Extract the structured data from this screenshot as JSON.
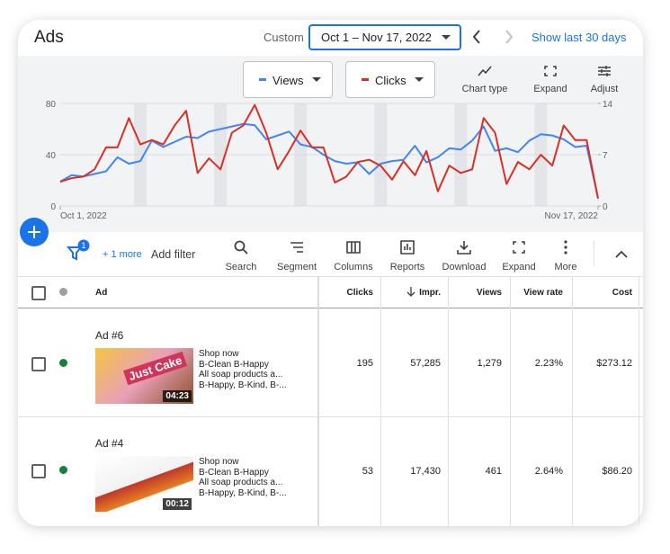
{
  "header": {
    "title": "Ads",
    "date_mode": "Custom",
    "date_range": "Oct 1 – Nov 17, 2022",
    "shortcut": "Show last 30 days"
  },
  "chart_controls": [
    "Chart type",
    "Expand",
    "Adjust"
  ],
  "chart_data": {
    "type": "line",
    "series": [
      {
        "name": "Views",
        "color": "#4285f4",
        "axis": "y",
        "values": [
          19,
          24,
          23,
          25,
          27,
          38,
          33,
          35,
          51,
          46,
          50,
          54,
          53,
          58,
          60,
          62,
          64,
          63,
          52,
          55,
          58,
          48,
          46,
          40,
          35,
          33,
          34,
          25,
          33,
          35,
          36,
          47,
          34,
          38,
          45,
          44,
          51,
          62,
          43,
          45,
          42,
          51,
          56,
          55,
          52,
          46,
          47,
          6
        ]
      },
      {
        "name": "Clicks",
        "color": "#d93025",
        "axis": "y2",
        "values": [
          3.3,
          3.8,
          4,
          5,
          8,
          8,
          12,
          8.4,
          9,
          8.4,
          11,
          13,
          4.5,
          6.5,
          5,
          10,
          11,
          13.8,
          10,
          5,
          7.5,
          10.3,
          8,
          8,
          3.2,
          4,
          6,
          6.3,
          5.5,
          3.6,
          6.1,
          4.2,
          7.5,
          2,
          5.5,
          4.5,
          5,
          12,
          10,
          3,
          6,
          5,
          7,
          5.5,
          11,
          9,
          9,
          1
        ]
      }
    ],
    "ylim": [
      0,
      80
    ],
    "yticks": [
      0,
      40,
      80
    ],
    "y2lim": [
      0,
      14
    ],
    "y2ticks": [
      0,
      7,
      14
    ],
    "xlim": [
      0,
      47
    ],
    "xticks": [
      {
        "value": 0,
        "label": "Oct 1, 2022"
      },
      {
        "value": 47,
        "label": "Nov 17, 2022"
      }
    ],
    "grid": true
  },
  "toolbar": {
    "filter_count": 1,
    "more_filters": "+ 1 more",
    "add_filter": "Add filter",
    "tools": [
      "Search",
      "Segment",
      "Columns",
      "Reports",
      "Download",
      "Expand",
      "More"
    ]
  },
  "table": {
    "columns": [
      "Ad",
      "Clicks",
      "Impr.",
      "Views",
      "View rate",
      "Cost"
    ],
    "rows": [
      {
        "name": "Ad #6",
        "lines": [
          "Shop now",
          "B-Clean B-Happy",
          "All soap products a...",
          "B-Happy, B-Kind, B-..."
        ],
        "thumbnail_text": "Just Cake",
        "duration": "04:23",
        "cells": [
          "195",
          "57,285",
          "1,279",
          "2.23%",
          "$273.12"
        ]
      },
      {
        "name": "Ad #4",
        "lines": [
          "Shop now",
          "B-Clean B-Happy",
          "All soap products a...",
          "B-Happy, B-Kind, B-..."
        ],
        "duration": "00:12",
        "cells": [
          "53",
          "17,430",
          "461",
          "2.64%",
          "$86.20"
        ]
      }
    ]
  }
}
